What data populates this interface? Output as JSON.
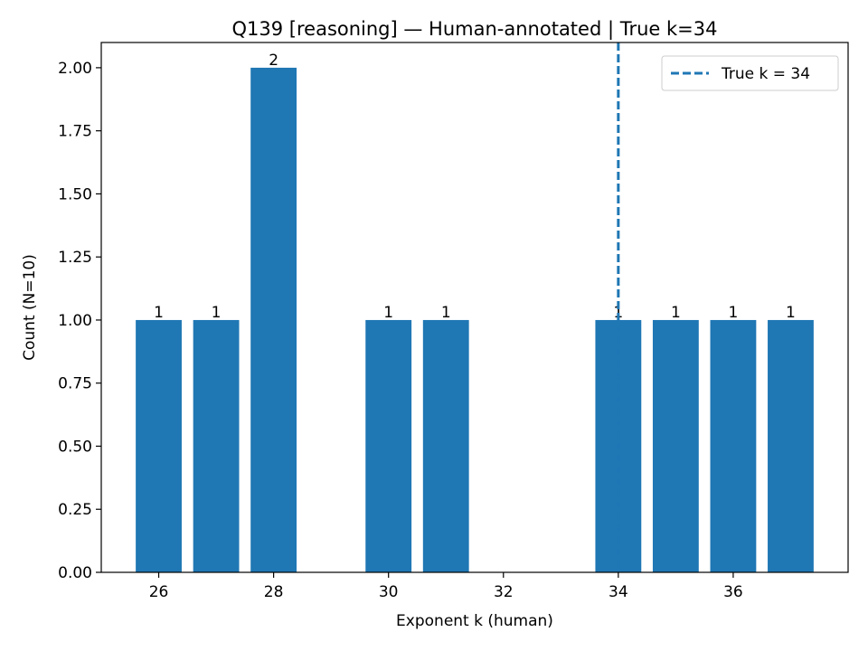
{
  "chart_data": {
    "type": "bar",
    "title": "Q139 [reasoning] — Human-annotated | True k=34",
    "xlabel": "Exponent k (human)",
    "ylabel": "Count (N=10)",
    "x": [
      26,
      27,
      28,
      30,
      31,
      34,
      35,
      36,
      37
    ],
    "values": [
      1,
      1,
      2,
      1,
      1,
      1,
      1,
      1,
      1
    ],
    "data_labels": [
      "1",
      "1",
      "2",
      "1",
      "1",
      "1",
      "1",
      "1",
      "1"
    ],
    "xlim": [
      25.0,
      38.0
    ],
    "ylim": [
      0,
      2.1
    ],
    "xticks": [
      26,
      28,
      30,
      32,
      34,
      36
    ],
    "xtick_labels": [
      "26",
      "28",
      "30",
      "32",
      "34",
      "36"
    ],
    "yticks": [
      0,
      0.25,
      0.5,
      0.75,
      1.0,
      1.25,
      1.5,
      1.75,
      2.0
    ],
    "ytick_labels": [
      "0.00",
      "0.25",
      "0.50",
      "0.75",
      "1.00",
      "1.25",
      "1.50",
      "1.75",
      "2.00"
    ],
    "bar_width": 0.8,
    "bar_color": "#1f77b4",
    "reference_line": {
      "x": 34,
      "style": "dashed",
      "color": "#1f77b4",
      "label": "True k = 34"
    },
    "legend": {
      "position": "top-right",
      "entries": [
        "True k = 34"
      ]
    },
    "grid": false
  }
}
